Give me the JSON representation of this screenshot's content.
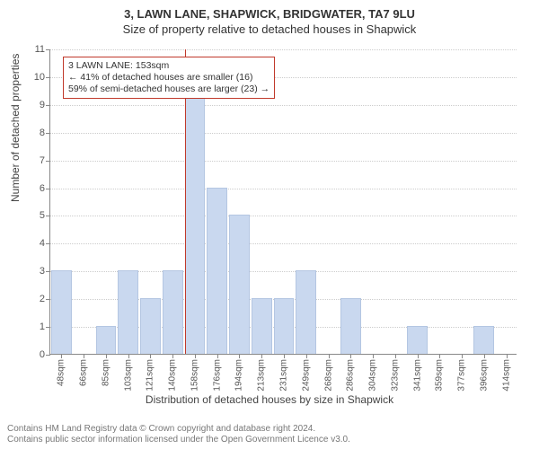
{
  "titles": {
    "main": "3, LAWN LANE, SHAPWICK, BRIDGWATER, TA7 9LU",
    "sub": "Size of property relative to detached houses in Shapwick"
  },
  "axes": {
    "ylabel": "Number of detached properties",
    "xlabel": "Distribution of detached houses by size in Shapwick",
    "ylim_max": 11,
    "ytick_step": 1,
    "xtick_suffix": "sqm"
  },
  "histogram": {
    "type": "histogram",
    "bar_color": "#c9d8ef",
    "bar_border": "#b4c6e2",
    "bin_labels": [
      48,
      66,
      85,
      103,
      121,
      140,
      158,
      176,
      194,
      213,
      231,
      249,
      268,
      286,
      304,
      323,
      341,
      359,
      377,
      396,
      414
    ],
    "values": [
      3,
      0,
      1,
      3,
      2,
      3,
      10,
      6,
      5,
      2,
      2,
      3,
      0,
      2,
      0,
      0,
      1,
      0,
      0,
      1,
      0
    ]
  },
  "marker": {
    "line_color": "#c0392b",
    "bin_index": 6,
    "callout_lines": [
      "3 LAWN LANE: 153sqm",
      "← 41% of detached houses are smaller (16)",
      "59% of semi-detached houses are larger (23) →"
    ]
  },
  "footer": {
    "line1": "Contains HM Land Registry data © Crown copyright and database right 2024.",
    "line2": "Contains public sector information licensed under the Open Government Licence v3.0."
  },
  "styling": {
    "background": "#ffffff",
    "grid_color": "#cccccc",
    "axis_color": "#888888",
    "text_color": "#444444",
    "title_fontsize": 13,
    "label_fontsize": 12,
    "tick_fontsize": 11,
    "callout_fontsize": 10.5,
    "footer_fontsize": 10
  }
}
